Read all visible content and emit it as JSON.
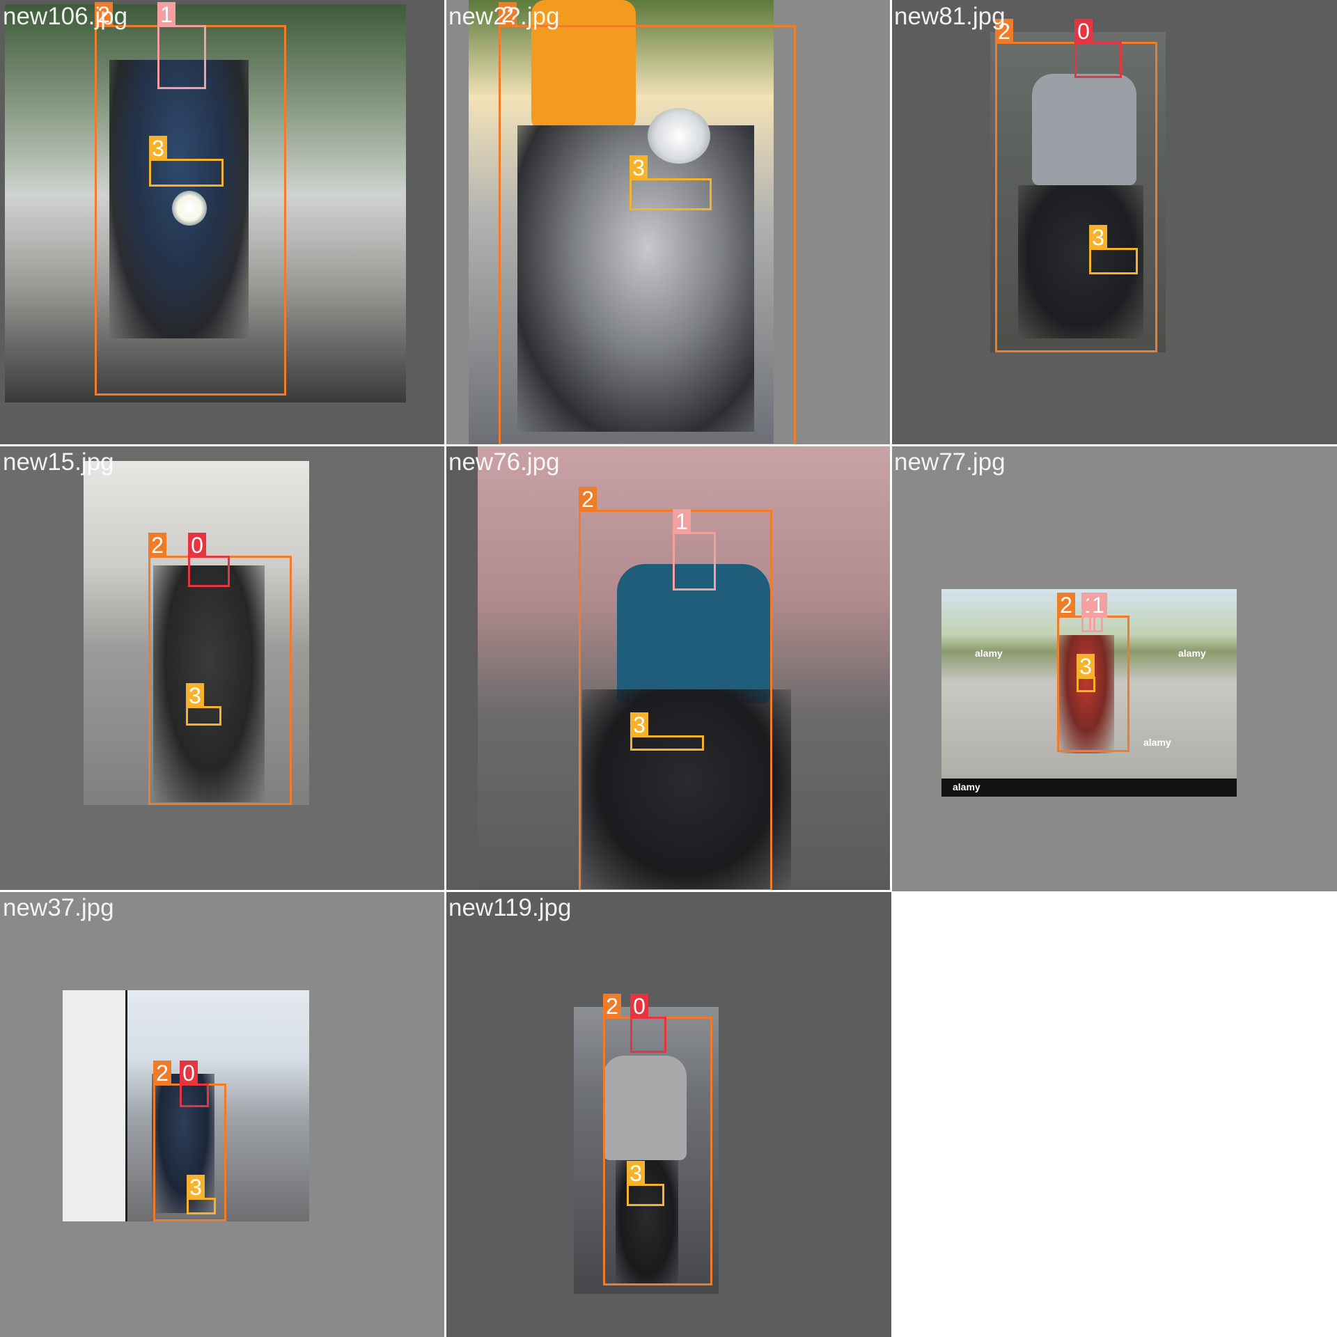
{
  "grid_background": "#ffffff",
  "empty_cell": {
    "background": "#ffffff"
  },
  "class_colors": {
    "0": "#e8343e",
    "1": "#f4a0a0",
    "2": "#f07c2a",
    "3": "#f7b22b"
  },
  "tiles": [
    {
      "filename": "new106.jpg",
      "background": "#5d5d5d",
      "scene": {
        "tone": "outdoor-forest-smoke",
        "sky": "#cfd3cf",
        "ground": "#3a3a38",
        "accent": "#2f4a6e"
      },
      "labels": [
        {
          "cls": "2",
          "label": "2"
        },
        {
          "cls": "1",
          "label": "1"
        },
        {
          "cls": "3",
          "label": "3"
        }
      ]
    },
    {
      "filename": "new2?.jpg",
      "background": "#8a8a8a",
      "scene": {
        "tone": "sunny-road",
        "sky": "#f2e2b8",
        "ground": "#6b6f75",
        "accent": "#f29b1e"
      },
      "labels": [
        {
          "cls": "2",
          "label": "2"
        },
        {
          "cls": "3",
          "label": "3"
        }
      ]
    },
    {
      "filename": "new81.jpg",
      "background": "#5d5d5d",
      "scene": {
        "tone": "street-rear",
        "sky": "#6a6e6c",
        "ground": "#4d4f4b",
        "accent": "#9aa0a6"
      },
      "labels": [
        {
          "cls": "2",
          "label": "2"
        },
        {
          "cls": "0",
          "label": "0"
        },
        {
          "cls": "3",
          "label": "3"
        }
      ]
    },
    {
      "filename": "new15.jpg",
      "background": "#6c6c6c",
      "scene": {
        "tone": "misty-road",
        "sky": "#e8e6e3",
        "ground": "#807f7d",
        "accent": "#3a3a3a"
      },
      "labels": [
        {
          "cls": "2",
          "label": "2"
        },
        {
          "cls": "0",
          "label": "0"
        },
        {
          "cls": "3",
          "label": "3"
        }
      ]
    },
    {
      "filename": "new76.jpg",
      "background": "#5d5d5d",
      "scene": {
        "tone": "market-street",
        "sky": "#c9a2a6",
        "ground": "#5a5a5c",
        "accent": "#1f5d7a"
      },
      "labels": [
        {
          "cls": "2",
          "label": "2"
        },
        {
          "cls": "1",
          "label": "1"
        },
        {
          "cls": "3",
          "label": "3"
        }
      ]
    },
    {
      "filename": "new77.jpg",
      "background": "#8a8a8a",
      "scene": {
        "tone": "highway",
        "sky": "#d5e3ee",
        "ground": "#a9a8a2",
        "accent": "#c23a2e"
      },
      "watermarks": [
        "alamy",
        "alamy",
        "alamy",
        "alamy"
      ],
      "labels": [
        {
          "cls": "2",
          "label": "2"
        },
        {
          "cls": "1",
          "label": "1"
        },
        {
          "cls": "1",
          "label": "1"
        },
        {
          "cls": "3",
          "label": "3"
        }
      ]
    },
    {
      "filename": "new37.jpg",
      "background": "#8a8a8a",
      "scene": {
        "tone": "traffic",
        "sky": "#e3e9ee",
        "ground": "#6e6e70",
        "accent": "#2d3e5a"
      },
      "labels": [
        {
          "cls": "2",
          "label": "2"
        },
        {
          "cls": "0",
          "label": "0"
        },
        {
          "cls": "3",
          "label": "3"
        }
      ]
    },
    {
      "filename": "new119.jpg",
      "background": "#5d5d5d",
      "scene": {
        "tone": "city-road",
        "sky": "#8c8f93",
        "ground": "#45474b",
        "accent": "#a8a9ab"
      },
      "labels": [
        {
          "cls": "2",
          "label": "2"
        },
        {
          "cls": "0",
          "label": "0"
        },
        {
          "cls": "3",
          "label": "3"
        }
      ]
    }
  ]
}
